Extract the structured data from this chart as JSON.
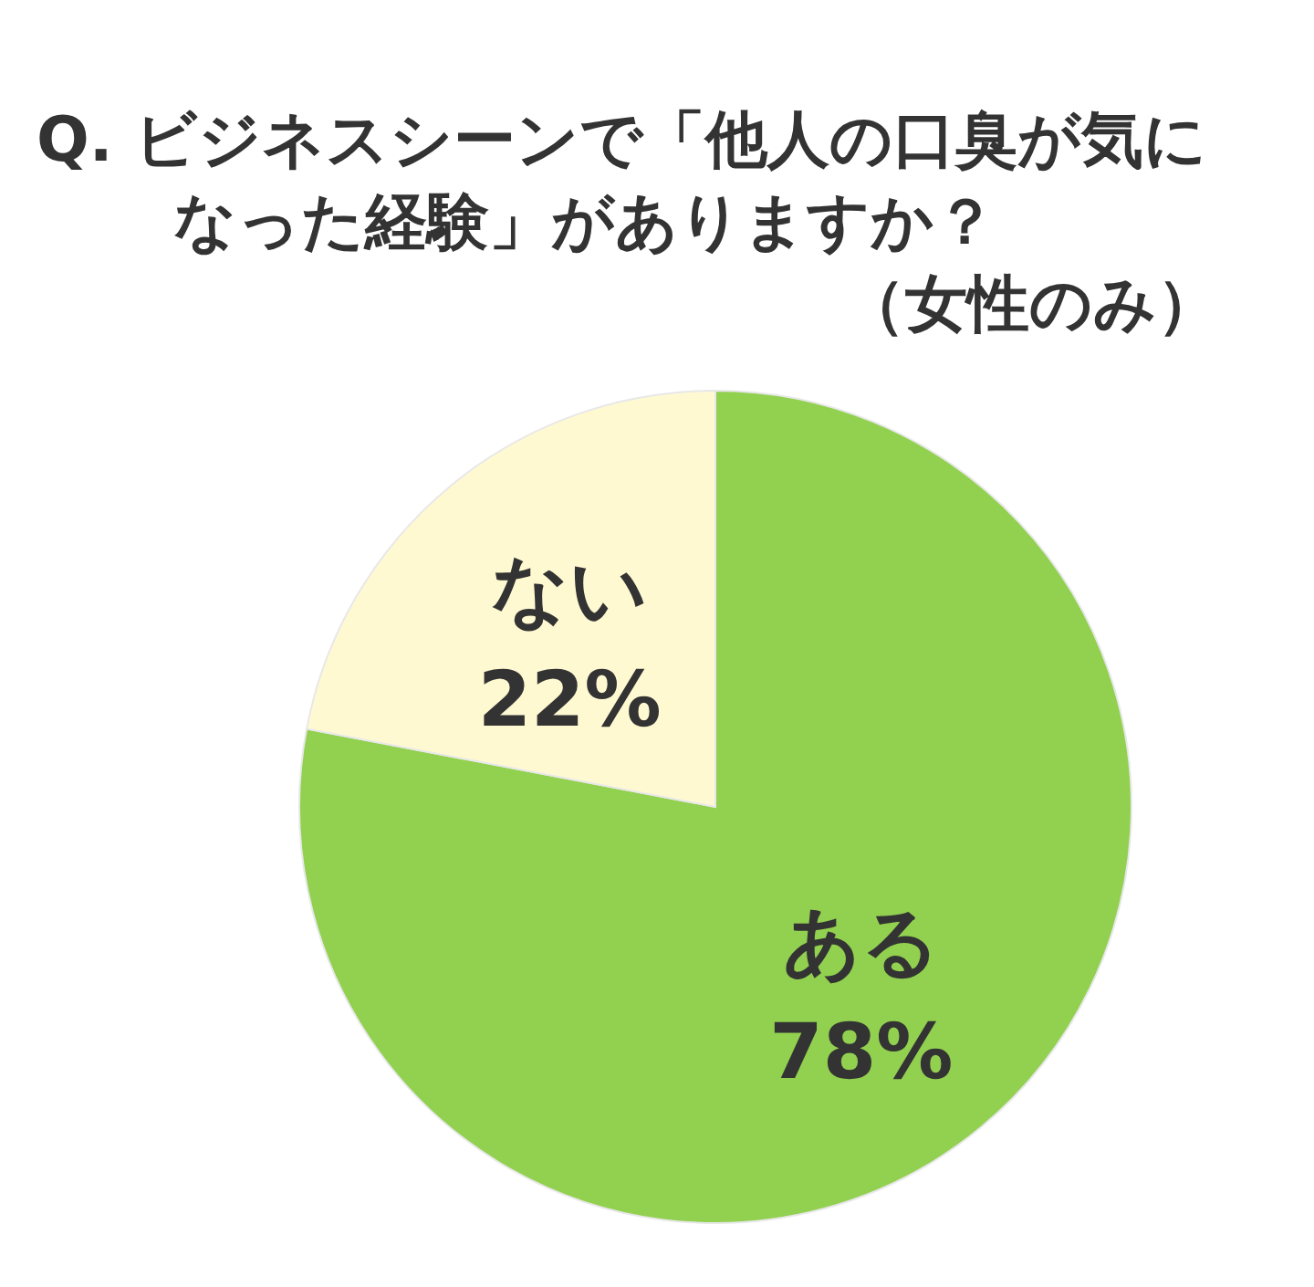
{
  "chart_data": {
    "type": "pie",
    "title": "Q.  ビジネスシーンで「他人の口臭が気になった経験」がありますか？",
    "subtitle": "（女性のみ）",
    "categories": [
      "ある",
      "ない"
    ],
    "values": [
      78,
      22
    ],
    "value_labels": [
      "78%",
      "22%"
    ],
    "colors": [
      "#92d050",
      "#fff9d2"
    ]
  }
}
